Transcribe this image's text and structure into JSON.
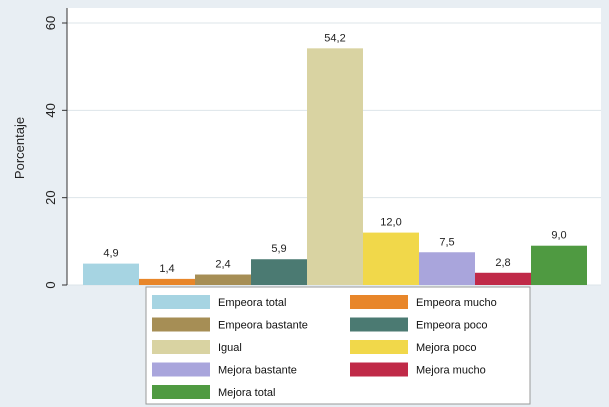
{
  "chart_data": {
    "type": "bar",
    "title": "",
    "xlabel": "",
    "ylabel": "Porcentaje",
    "ylim": [
      0,
      60
    ],
    "yticks": [
      0,
      20,
      40,
      60
    ],
    "grid": "horizontal",
    "legend_position": "bottom",
    "series": [
      {
        "name": "Empeora total",
        "value": 4.9,
        "label": "4,9",
        "color": "#a6d4e2"
      },
      {
        "name": "Empeora mucho",
        "value": 1.4,
        "label": "1,4",
        "color": "#e8862a"
      },
      {
        "name": "Empeora bastante",
        "value": 2.4,
        "label": "2,4",
        "color": "#a68e55"
      },
      {
        "name": "Empeora poco",
        "value": 5.9,
        "label": "5,9",
        "color": "#4b7a72"
      },
      {
        "name": "Igual",
        "value": 54.2,
        "label": "54,2",
        "color": "#d9d3a2"
      },
      {
        "name": "Mejora poco",
        "value": 12.0,
        "label": "12,0",
        "color": "#f1d84a"
      },
      {
        "name": "Mejora bastante",
        "value": 7.5,
        "label": "7,5",
        "color": "#a9a5dc"
      },
      {
        "name": "Mejora mucho",
        "value": 2.8,
        "label": "2,8",
        "color": "#c02a48"
      },
      {
        "name": "Mejora total",
        "value": 9.0,
        "label": "9,0",
        "color": "#4f9a41"
      }
    ]
  }
}
